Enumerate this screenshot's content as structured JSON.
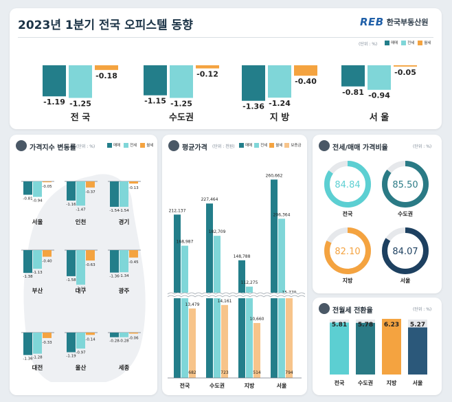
{
  "header": {
    "title": "2023년 1분기 전국 오피스텔 동향",
    "logo_text": "REB",
    "org_name": "한국부동산원"
  },
  "colors": {
    "sale": "#237e8a",
    "jeonse": "#7fd6d8",
    "wolse": "#f4a340",
    "deposit": "#f7c48a",
    "gray": "#e6e6e6"
  },
  "chart_data": [
    {
      "id": "summary",
      "type": "bar",
      "unit": "(단위 : %)",
      "legend": [
        "매매",
        "전세",
        "월세"
      ],
      "categories": [
        "전 국",
        "수도권",
        "지 방",
        "서 울"
      ],
      "series": [
        {
          "name": "매매",
          "values": [
            -1.19,
            -1.15,
            -1.36,
            -0.81
          ]
        },
        {
          "name": "전세",
          "values": [
            -1.25,
            -1.25,
            -1.24,
            -0.94
          ]
        },
        {
          "name": "월세",
          "values": [
            -0.18,
            -0.12,
            -0.4,
            -0.05
          ]
        }
      ],
      "labels": {
        "매매": [
          "-1.19",
          "-1.15",
          "-1.36",
          "-0.81"
        ],
        "전세": [
          "-1.25",
          "-1.25",
          "-1.24",
          "-0.94"
        ],
        "월세": [
          "-0.18",
          "-0.12",
          "-0.40",
          "-0.05"
        ]
      }
    },
    {
      "id": "regional",
      "type": "bar",
      "title": "가격지수 변동률",
      "unit": "(단위 : %)",
      "legend": [
        "매매",
        "전세",
        "월세"
      ],
      "categories": [
        "서울",
        "인천",
        "경기",
        "부산",
        "대구",
        "광주",
        "대전",
        "울산",
        "세종"
      ],
      "series": [
        {
          "name": "매매",
          "values": [
            -0.81,
            -1.16,
            -1.54,
            -1.38,
            -1.58,
            -1.36,
            -1.36,
            -1.19,
            -0.28
          ]
        },
        {
          "name": "전세",
          "values": [
            -0.94,
            -1.47,
            -1.54,
            -1.13,
            -2.1,
            -1.34,
            -1.28,
            -0.97,
            -0.28
          ]
        },
        {
          "name": "월세",
          "values": [
            -0.05,
            -0.37,
            -0.13,
            -0.4,
            -0.63,
            -0.45,
            -0.33,
            -0.14,
            -0.06
          ]
        }
      ],
      "labels": {
        "매매": [
          "-0.81",
          "-1.16",
          "-1.54",
          "-1.38",
          "-1.58",
          "-1.36",
          "-1.36",
          "-1.19",
          "-0.28"
        ],
        "전세": [
          "-0.94",
          "-1.47",
          "-1.54",
          "-1.13",
          "-2.10",
          "-1.34",
          "-1.28",
          "-0.97",
          "-0.28"
        ],
        "월세": [
          "-0.05",
          "-0.37",
          "-0.13",
          "-0.40",
          "-0.63",
          "-0.45",
          "-0.33",
          "-0.14",
          "-0.06"
        ]
      }
    },
    {
      "id": "avg_price",
      "type": "bar",
      "title": "평균가격",
      "unit": "(단위 : 천원)",
      "legend": [
        "매매",
        "전세",
        "월세",
        "보증금"
      ],
      "categories": [
        "전국",
        "수도권",
        "지방",
        "서울"
      ],
      "series": [
        {
          "name": "매매",
          "values": [
            212137,
            227464,
            148788,
            260662
          ]
        },
        {
          "name": "전세",
          "values": [
            168987,
            182709,
            112275,
            206364
          ]
        },
        {
          "name": "보증금",
          "values": [
            13479,
            14161,
            10660,
            15770
          ]
        },
        {
          "name": "월세",
          "values": [
            682,
            723,
            514,
            794
          ]
        }
      ],
      "labels": {
        "매매": [
          "212,137",
          "227,464",
          "148,788",
          "260,662"
        ],
        "전세": [
          "168,987",
          "182,709",
          "112,275",
          "206,364"
        ],
        "보증금": [
          "13,479",
          "14,161",
          "10,660",
          "15,770"
        ],
        "월세": [
          "682",
          "723",
          "514",
          "794"
        ]
      },
      "axis_break": true
    },
    {
      "id": "ratio",
      "type": "pie",
      "title": "전세/매매 가격비율",
      "unit": "(단위 : %)",
      "categories": [
        "전국",
        "수도권",
        "지방",
        "서울"
      ],
      "values": [
        84.84,
        85.5,
        82.1,
        84.07
      ],
      "labels": [
        "84.84",
        "85.50",
        "82.10",
        "84.07"
      ],
      "colors": [
        "#5ccfd2",
        "#2a7a85",
        "#f4a340",
        "#1d4060"
      ]
    },
    {
      "id": "conversion",
      "type": "bar",
      "title": "전월세 전환율",
      "unit": "(단위 : %)",
      "categories": [
        "전국",
        "수도권",
        "지방",
        "서울"
      ],
      "values": [
        5.81,
        5.78,
        6.23,
        5.27
      ],
      "labels": [
        "5.81",
        "5.78",
        "6.23",
        "5.27"
      ],
      "colors": [
        "#5ccfd2",
        "#2a7a85",
        "#f4a340",
        "#2b587a"
      ]
    }
  ]
}
